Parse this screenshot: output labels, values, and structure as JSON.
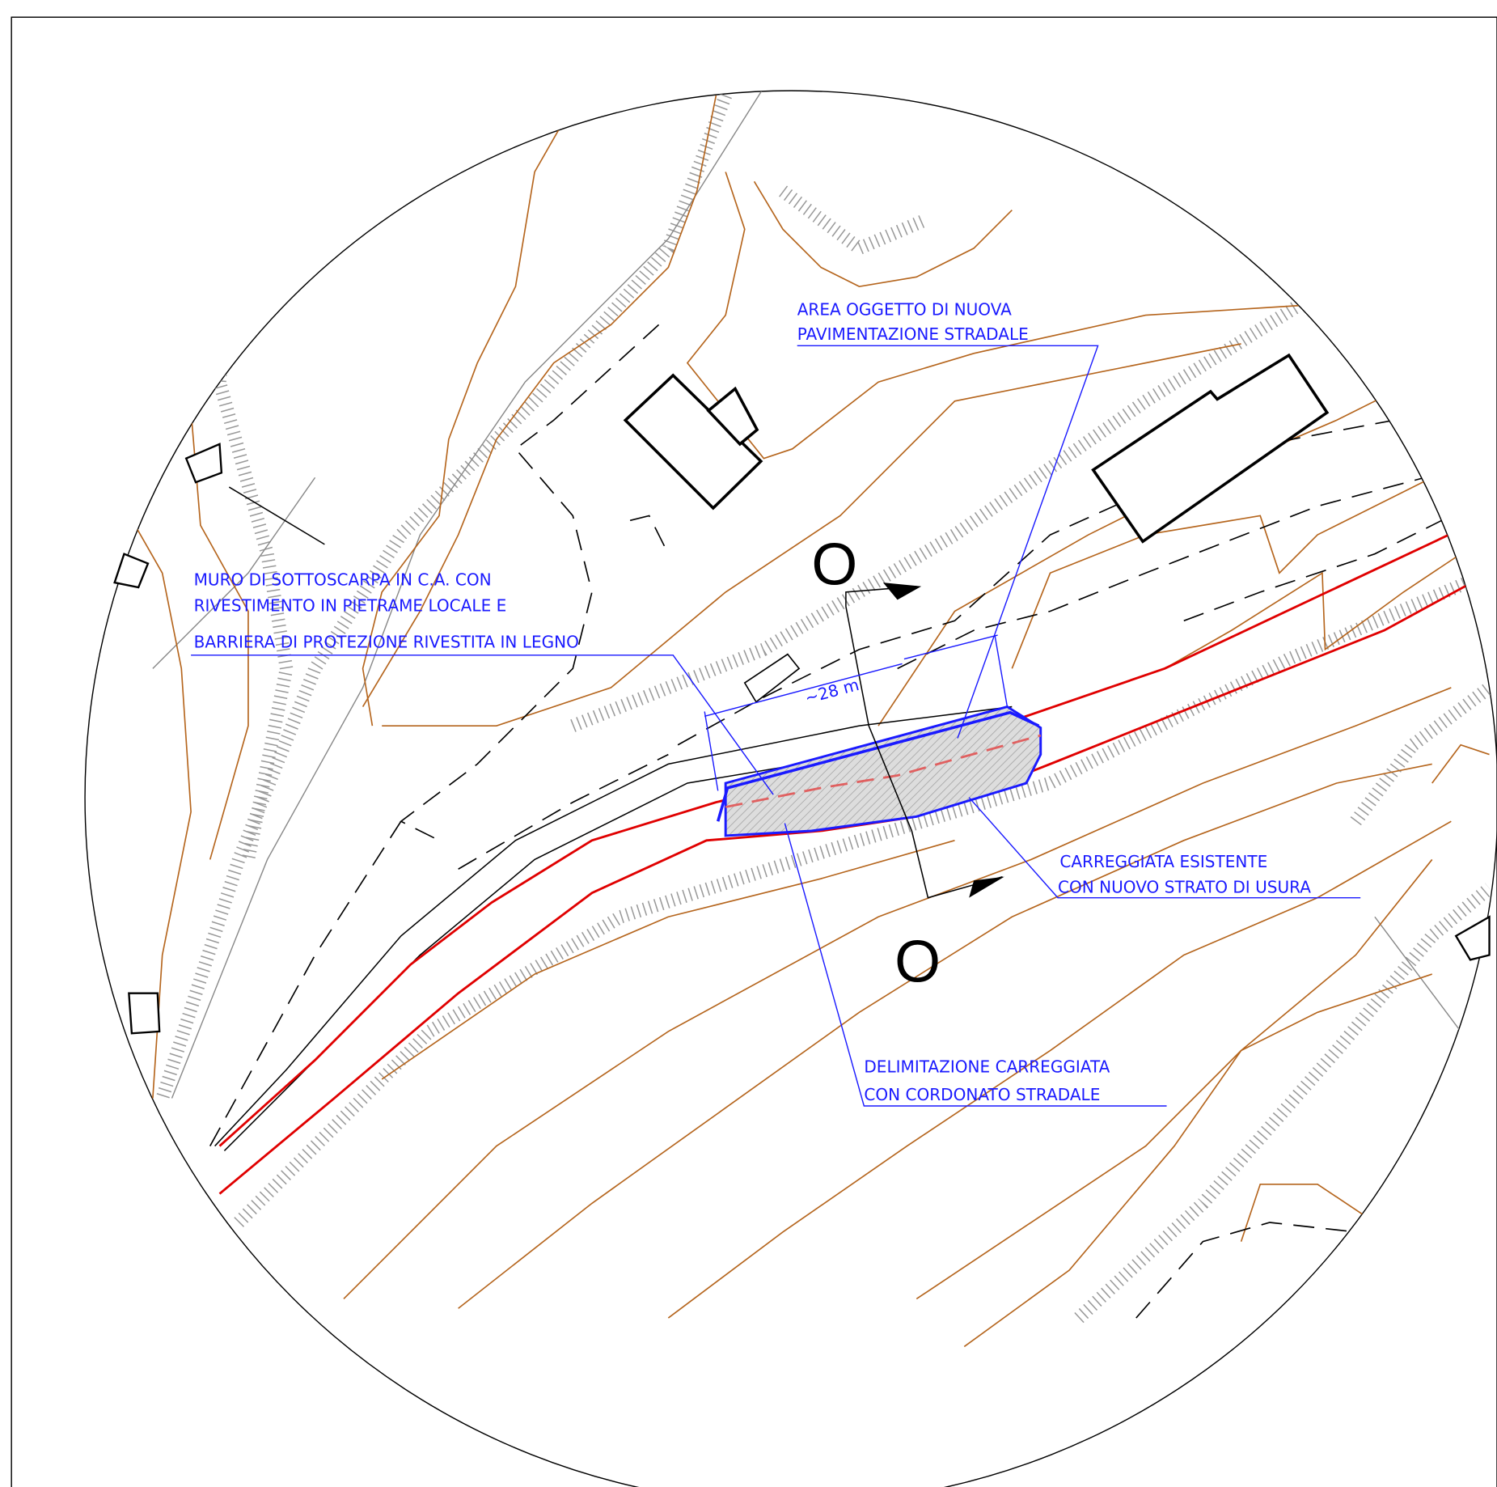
{
  "annotations": [
    {
      "lines": [
        "AREA OGGETTO DI NUOVA",
        "PAVIMENTAZIONE STRADALE"
      ]
    },
    {
      "lines": [
        "MURO DI SOTTOSCARPA IN C.A. CON",
        "RIVESTIMENTO IN PIETRAME LOCALE E",
        "BARRIERA DI PROTEZIONE RIVESTITA IN LEGNO"
      ]
    },
    {
      "lines": [
        "CARREGGIATA ESISTENTE",
        "CON NUOVO STRATO DI USURA"
      ]
    },
    {
      "lines": [
        "DELIMITAZIONE CARREGGIATA",
        "CON CORDONATO STRADALE"
      ]
    }
  ],
  "dimension": "~28 m",
  "section_marks": [
    "O",
    "O"
  ]
}
